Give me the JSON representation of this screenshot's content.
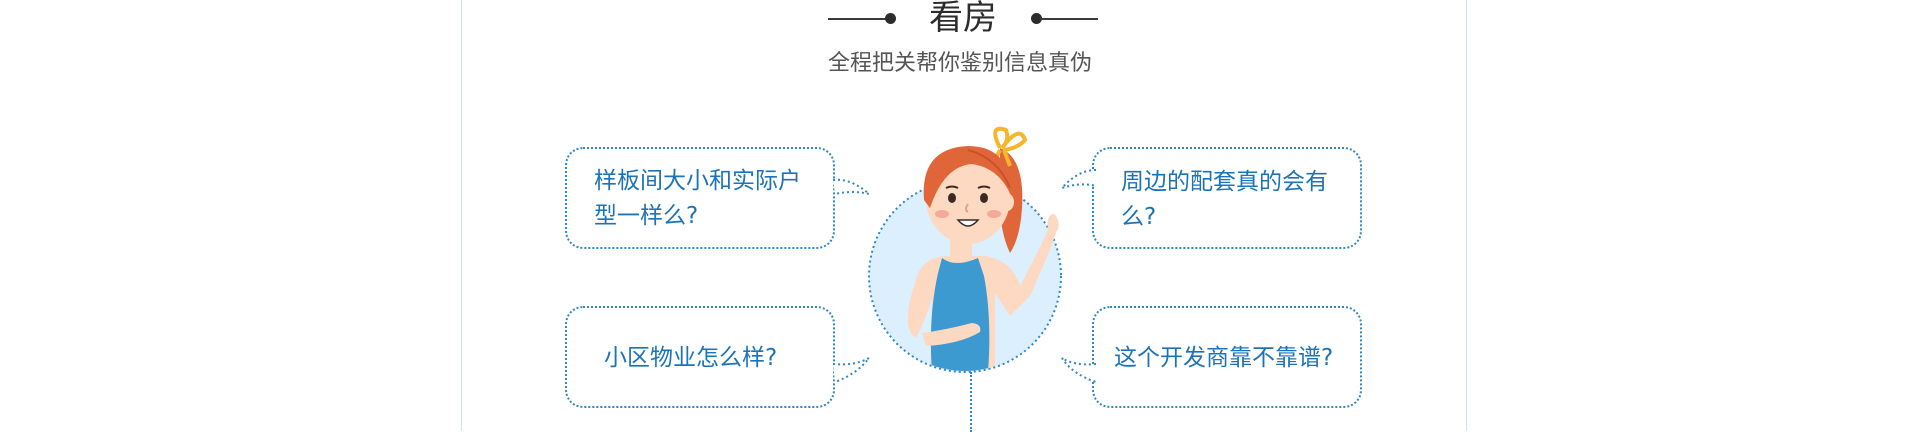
{
  "header": {
    "title": "看房",
    "subtitle": "全程把关帮你鉴别信息真伪"
  },
  "questions": {
    "top_left": "样板间大小和实际户型一样么?",
    "top_right": "周边的配套真的会有么?",
    "bottom_left": "小区物业怎么样?",
    "bottom_right": "这个开发商靠不靠谱?"
  },
  "colors": {
    "accent": "#2f86c8",
    "question_text": "#1d73b8",
    "title_text": "#2c2c2c",
    "subtitle_text": "#555555",
    "frame": "#cfe3f3"
  }
}
